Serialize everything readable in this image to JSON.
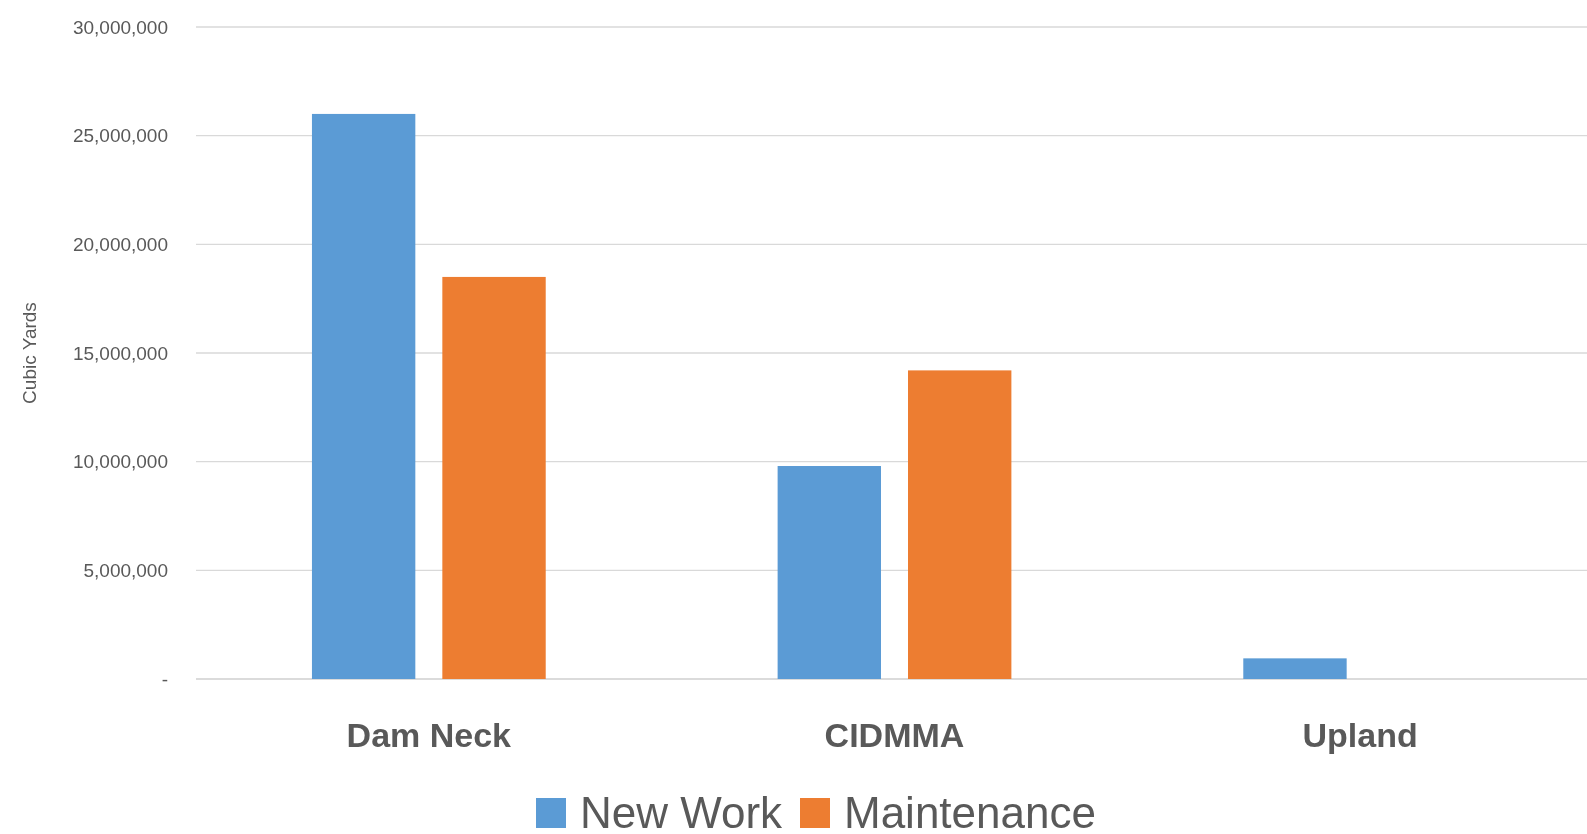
{
  "chart_data": {
    "type": "bar",
    "ylabel": "Cubic Yards",
    "categories": [
      "Dam Neck",
      "CIDMMA",
      "Upland"
    ],
    "series": [
      {
        "name": "New Work",
        "color": "#5b9bd5",
        "values": [
          26000000,
          9800000,
          950000
        ]
      },
      {
        "name": "Maintenance",
        "color": "#ed7d31",
        "values": [
          18500000,
          14200000,
          0
        ]
      }
    ],
    "ylim": [
      0,
      30000000
    ],
    "yticks": [
      {
        "value": 0,
        "label": "-"
      },
      {
        "value": 5000000,
        "label": "5,000,000"
      },
      {
        "value": 10000000,
        "label": "10,000,000"
      },
      {
        "value": 15000000,
        "label": "15,000,000"
      },
      {
        "value": 20000000,
        "label": "20,000,000"
      },
      {
        "value": 25000000,
        "label": "25,000,000"
      },
      {
        "value": 30000000,
        "label": "30,000,000"
      }
    ],
    "grid": "y",
    "legend": "bottom"
  }
}
